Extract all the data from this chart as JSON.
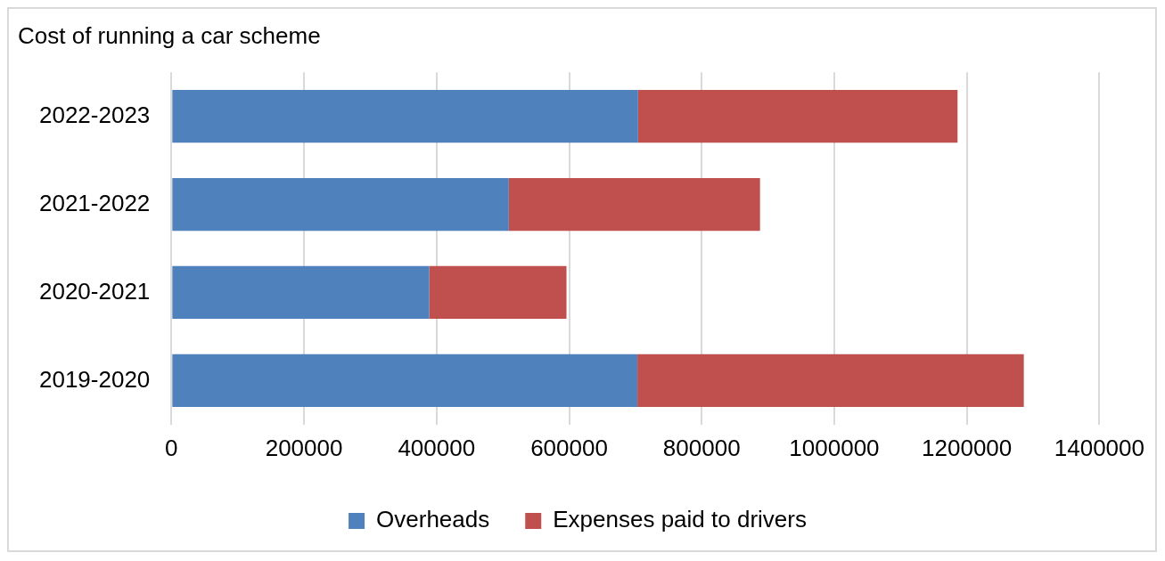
{
  "chart_data": {
    "type": "bar",
    "orientation": "horizontal",
    "stacked": true,
    "title": "Cost of running a car scheme",
    "categories": [
      "2022-2023",
      "2021-2022",
      "2020-2021",
      "2019-2020"
    ],
    "series": [
      {
        "name": "Overheads",
        "color": "#4f81bd",
        "values": [
          704000,
          509000,
          389000,
          703000
        ]
      },
      {
        "name": "Expenses paid to drivers",
        "color": "#c0504d",
        "values": [
          482000,
          379000,
          207000,
          583000
        ]
      }
    ],
    "xlim": [
      0,
      1400000
    ],
    "xticks": [
      0,
      200000,
      400000,
      600000,
      800000,
      1000000,
      1200000,
      1400000
    ],
    "grid": "x",
    "legend": "bottom"
  }
}
